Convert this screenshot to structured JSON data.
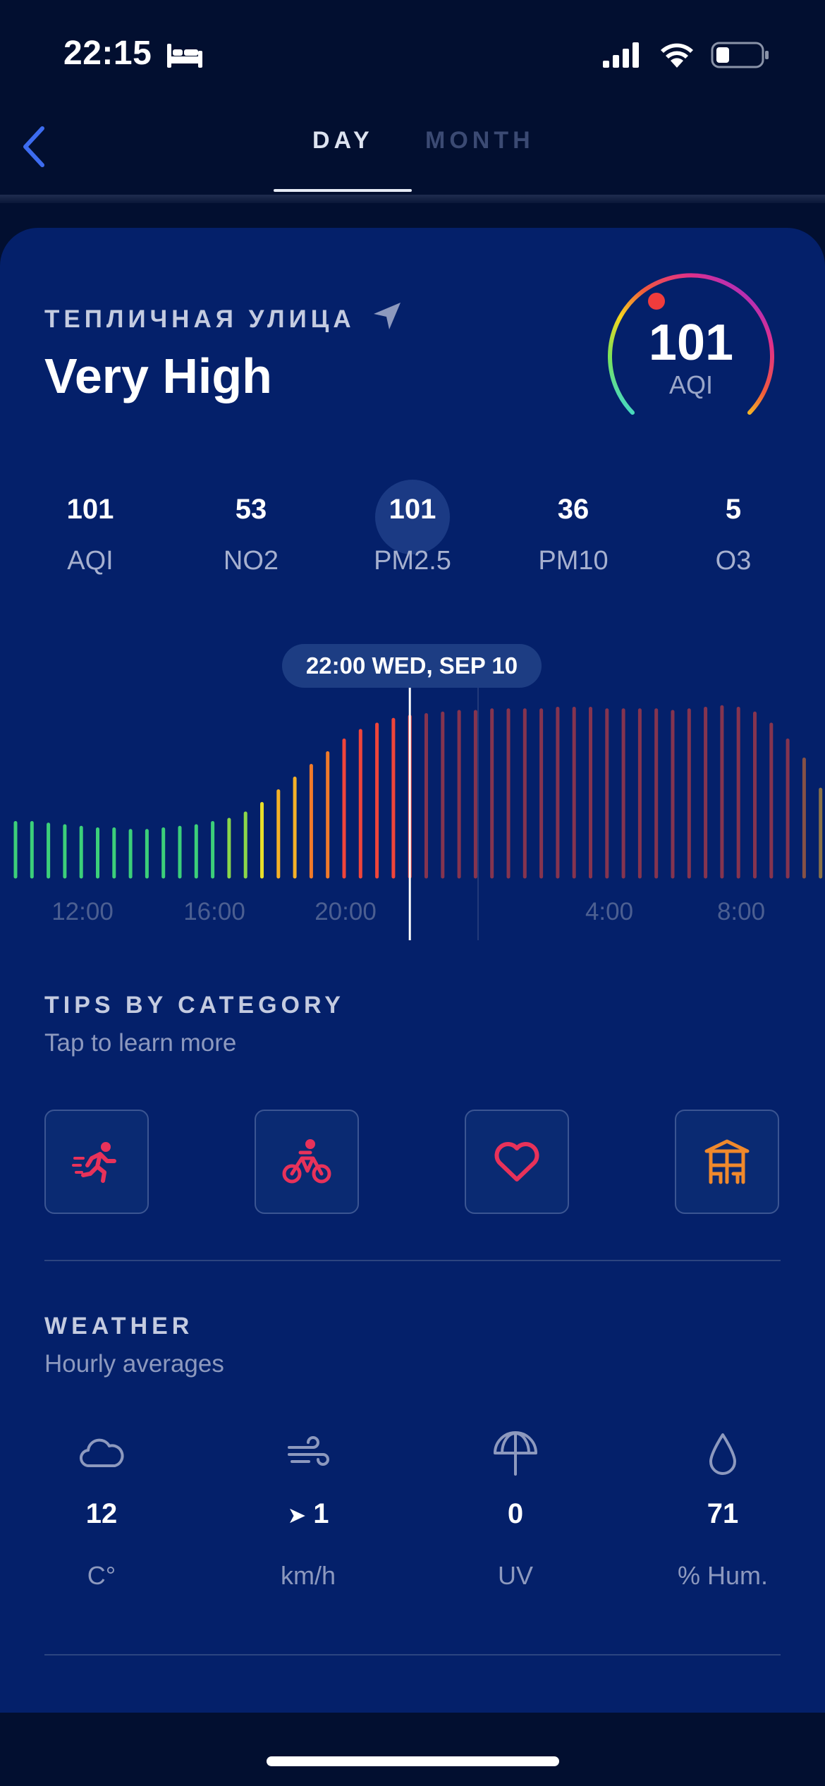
{
  "status_bar": {
    "time": "22:15"
  },
  "nav": {
    "tabs": [
      "DAY",
      "MONTH"
    ],
    "active_tab": "DAY"
  },
  "header": {
    "location": "ТЕПЛИЧНАЯ УЛИЦА",
    "level": "Very High"
  },
  "gauge": {
    "value": "101",
    "label": "AQI"
  },
  "metrics": [
    {
      "value": "101",
      "label": "AQI"
    },
    {
      "value": "53",
      "label": "NO2"
    },
    {
      "value": "101",
      "label": "PM2.5",
      "selected": true
    },
    {
      "value": "36",
      "label": "PM10"
    },
    {
      "value": "5",
      "label": "O3"
    }
  ],
  "chart": {
    "tooltip": "22:00 WED, SEP 10",
    "x_ticks": [
      "12:00",
      "16:00",
      "20:00",
      "4:00",
      "8:00"
    ]
  },
  "chart_data": {
    "type": "bar",
    "x_tick_labels": [
      "12:00",
      "16:00",
      "20:00",
      "4:00",
      "8:00"
    ],
    "selected_label": "22:00 WED, SEP 10",
    "values": [
      34,
      34,
      33,
      32,
      31,
      30,
      30,
      29,
      29,
      30,
      31,
      32,
      34,
      36,
      40,
      46,
      54,
      62,
      70,
      78,
      86,
      92,
      96,
      99,
      101,
      102,
      103,
      104,
      104,
      105,
      105,
      105,
      105,
      106,
      106,
      106,
      105,
      105,
      105,
      105,
      104,
      105,
      106,
      107,
      106,
      103,
      96,
      86,
      74,
      55
    ],
    "past_count": 25
  },
  "tips": {
    "title": "TIPS BY CATEGORY",
    "subtitle": "Tap to learn more",
    "items": [
      {
        "icon": "running-icon",
        "color": "#e8325a"
      },
      {
        "icon": "cycling-icon",
        "color": "#e8325a"
      },
      {
        "icon": "heart-icon",
        "color": "#e8325a"
      },
      {
        "icon": "outdoor-dining-icon",
        "color": "#f0892c"
      }
    ]
  },
  "weather": {
    "title": "WEATHER",
    "subtitle": "Hourly averages",
    "items": [
      {
        "icon": "cloud-icon",
        "value": "12",
        "unit": "C°"
      },
      {
        "icon": "wind-icon",
        "value": "1",
        "unit": "km/h"
      },
      {
        "icon": "umbrella-icon",
        "value": "0",
        "unit": "UV"
      },
      {
        "icon": "droplet-icon",
        "value": "71",
        "unit": "% Hum."
      }
    ]
  },
  "colors": {
    "background": "#020f30",
    "card": "#04206a",
    "accent": "#3d6cf0"
  }
}
